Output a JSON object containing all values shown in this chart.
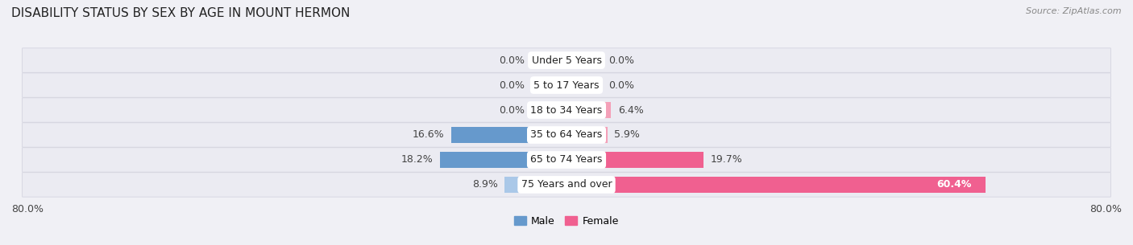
{
  "title": "DISABILITY STATUS BY SEX BY AGE IN MOUNT HERMON",
  "source": "Source: ZipAtlas.com",
  "categories": [
    "Under 5 Years",
    "5 to 17 Years",
    "18 to 34 Years",
    "35 to 64 Years",
    "65 to 74 Years",
    "75 Years and over"
  ],
  "male_values": [
    0.0,
    0.0,
    0.0,
    16.6,
    18.2,
    8.9
  ],
  "female_values": [
    0.0,
    0.0,
    6.4,
    5.9,
    19.7,
    60.4
  ],
  "male_color_small": "#aac8e8",
  "male_color_large": "#6699cc",
  "female_color_small": "#f4a0b8",
  "female_color_large": "#f06090",
  "male_label": "Male",
  "female_label": "Female",
  "axis_max": 80.0,
  "bar_height": 0.62,
  "min_stub": 5.0,
  "background_color": "#f0f0f5",
  "row_bg_color": "#e6e6ee",
  "title_fontsize": 11,
  "source_fontsize": 8,
  "label_fontsize": 9,
  "value_fontsize": 9,
  "category_fontsize": 9
}
